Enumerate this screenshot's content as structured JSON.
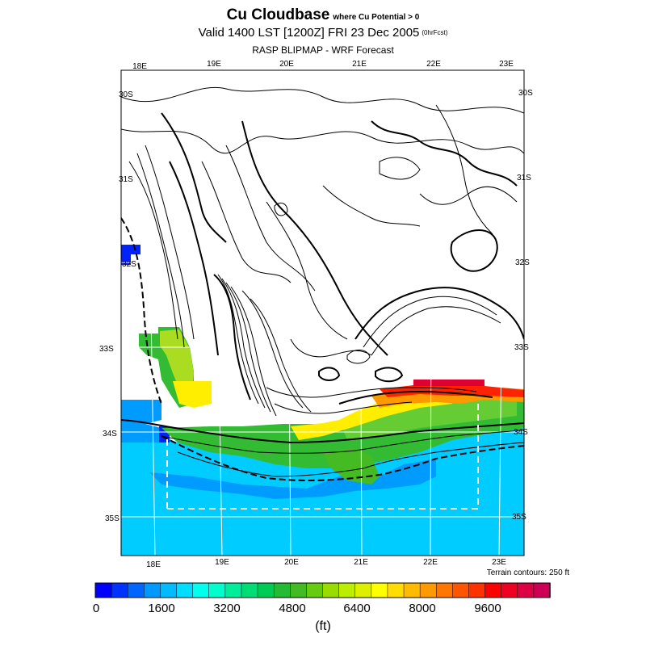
{
  "title": {
    "main": "Cu Cloudbase",
    "condition": "where Cu Potential > 0",
    "valid": "Valid 1400 LST [1200Z] FRI 23 Dec 2005",
    "forecast": "(0hrFcst)",
    "model": "RASP BLIPMAP - WRF Forecast"
  },
  "map": {
    "lon_labels_top": [
      "18E",
      "19E",
      "20E",
      "21E",
      "22E",
      "23E"
    ],
    "lon_labels_bottom": [
      "18E",
      "19E",
      "20E",
      "21E",
      "22E",
      "23E"
    ],
    "lat_labels_left": [
      "30S",
      "31S",
      "32S",
      "33S",
      "34S",
      "35S"
    ],
    "lat_labels_right": [
      "30S",
      "31S",
      "32S",
      "33S",
      "34S",
      "35S"
    ],
    "terrain_note": "Terrain contours: 250 ft",
    "colors": {
      "ocean": "#00ccff",
      "coast_blue": "#009bff",
      "deep_blue": "#0022ff",
      "green": "#33bb33",
      "light_green": "#66cc33",
      "yellow_green": "#aadd22",
      "yellow": "#ffee00",
      "orange": "#ff9900",
      "red": "#ff2200",
      "crimson": "#dd0033"
    }
  },
  "colorbar": {
    "labels": [
      "0",
      "1600",
      "3200",
      "4800",
      "6400",
      "8000",
      "9600"
    ],
    "units": "(ft)",
    "colors": [
      "#0000ff",
      "#0033ff",
      "#0066ff",
      "#0099ff",
      "#00bbff",
      "#00ddff",
      "#00ffee",
      "#00ffcc",
      "#00ee99",
      "#00dd77",
      "#00cc55",
      "#22bb33",
      "#44bb22",
      "#66cc11",
      "#99dd00",
      "#bbee00",
      "#ddf000",
      "#ffff00",
      "#ffdd00",
      "#ffbb00",
      "#ff9900",
      "#ff7700",
      "#ff5500",
      "#ff3300",
      "#ff0000",
      "#ee0022",
      "#dd0044",
      "#cc0055"
    ]
  }
}
